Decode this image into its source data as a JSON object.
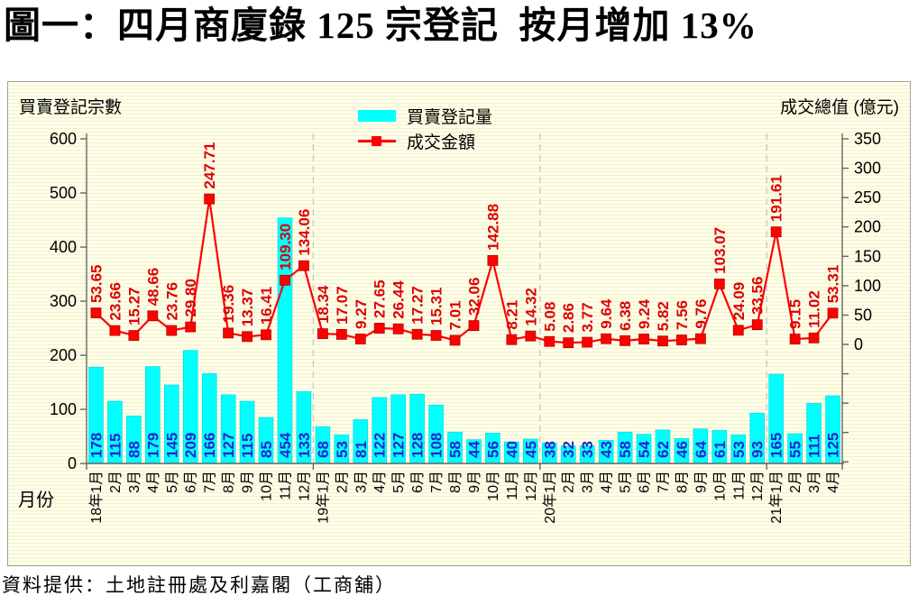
{
  "title": "圖一：四月商廈錄 125 宗登記  按月增加 13%",
  "source": "資料提供：土地註冊處及利嘉閣（工商舖）",
  "chart_data": {
    "type": "bar+line (dual axis combo)",
    "title": "圖一：四月商廈錄 125 宗登記 按月增加 13%",
    "categories": [
      "18年1月",
      "2月",
      "3月",
      "4月",
      "5月",
      "6月",
      "7月",
      "8月",
      "9月",
      "10月",
      "11月",
      "12月",
      "19年1月",
      "2月",
      "3月",
      "4月",
      "5月",
      "6月",
      "7月",
      "8月",
      "9月",
      "10月",
      "11月",
      "12月",
      "20年1月",
      "2月",
      "3月",
      "4月",
      "5月",
      "6月",
      "7月",
      "8月",
      "9月",
      "10月",
      "11月",
      "12月",
      "21年1月",
      "2月",
      "3月",
      "4月"
    ],
    "series": [
      {
        "name": "買賣登記量",
        "type": "bar",
        "axis": "left",
        "values": [
          178,
          115,
          88,
          179,
          145,
          209,
          166,
          127,
          115,
          85,
          454,
          133,
          68,
          53,
          81,
          122,
          127,
          128,
          108,
          58,
          44,
          56,
          40,
          45,
          38,
          32,
          33,
          43,
          58,
          54,
          62,
          46,
          64,
          61,
          53,
          93,
          165,
          55,
          111,
          125
        ]
      },
      {
        "name": "成交金額",
        "type": "line",
        "axis": "right",
        "values": [
          53.65,
          23.66,
          15.27,
          48.66,
          23.76,
          29.8,
          247.71,
          19.36,
          13.37,
          16.41,
          109.3,
          134.06,
          18.34,
          17.07,
          9.27,
          27.65,
          26.44,
          17.27,
          15.31,
          7.01,
          32.06,
          142.88,
          8.21,
          14.32,
          5.08,
          2.86,
          3.77,
          9.64,
          6.38,
          9.24,
          5.82,
          7.56,
          9.76,
          103.07,
          24.09,
          33.56,
          191.61,
          9.15,
          11.02,
          53.31
        ],
        "labels": [
          "53.65",
          "23.66",
          "15.27",
          "48.66",
          "23.76",
          "29.80",
          "247.71",
          "19.36",
          "13.37",
          "16.41",
          "109.30",
          "134.06",
          "18.34",
          "17.07",
          "9.27",
          "27.65",
          "26.44",
          "17.27",
          "15.31",
          "7.01",
          "32.06",
          "142.88",
          "8.21",
          "14.32",
          "5.08",
          "2.86",
          "3.77",
          "9.64",
          "6.38",
          "9.24",
          "5.82",
          "7.56",
          "9.76",
          "103.07",
          "24.09",
          "33.56",
          "191.61",
          "9.15",
          "11.02",
          "53.31"
        ]
      }
    ],
    "left_axis": {
      "label": "買賣登記宗數",
      "min": 0,
      "max": 600,
      "tick_step": 100
    },
    "right_axis": {
      "label": "成交總值 (億元)",
      "min": 0,
      "max": 350,
      "tick_step": 50,
      "unlabeled_ticks_below_zero": 4
    },
    "x_axis": {
      "label": "月份"
    },
    "year_separators_after": [
      11,
      23,
      35
    ],
    "legend_position": "top-center",
    "grid": "none",
    "colors": {
      "bar": "#00ffff",
      "bar_border": "#00d8d8",
      "bar_label": "#2323cf",
      "line": "#ff0000",
      "line_marker_border": "#b00000",
      "line_label": "#dd0000",
      "axis": "#666666",
      "year_separator": "#c9c9c9",
      "panel_background": "#ffffe9"
    }
  }
}
